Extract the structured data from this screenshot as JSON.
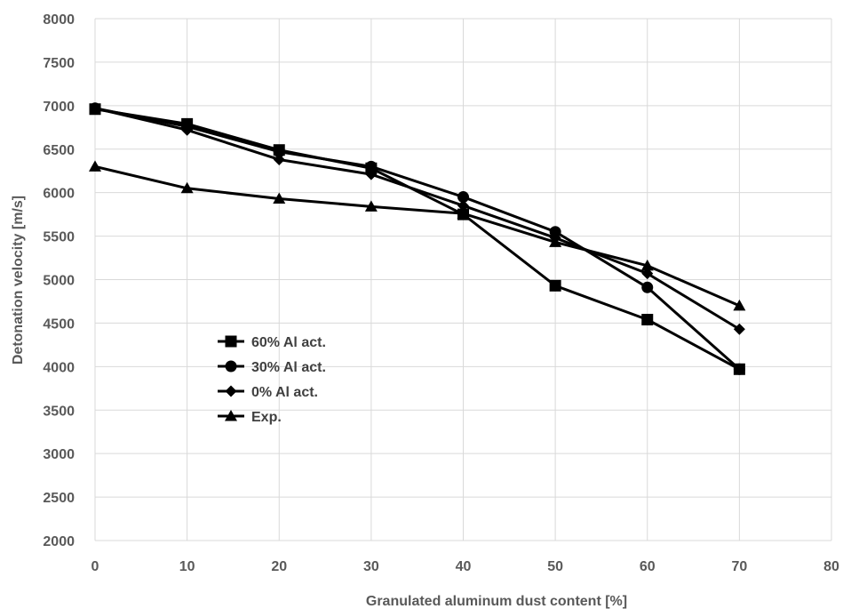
{
  "chart_data": {
    "type": "line",
    "title": "",
    "xlabel": "Granulated aluminum dust content [%]",
    "ylabel": "Detonation velocity [m/s]",
    "xlim": [
      0,
      80
    ],
    "ylim": [
      2000,
      8000
    ],
    "xticks": [
      0,
      10,
      20,
      30,
      40,
      50,
      60,
      70,
      80
    ],
    "yticks": [
      2000,
      2500,
      3000,
      3500,
      4000,
      4500,
      5000,
      5500,
      6000,
      6500,
      7000,
      7500,
      8000
    ],
    "grid": true,
    "legend_position": "left-center-inside",
    "x": [
      0,
      10,
      20,
      30,
      40,
      50,
      60,
      70
    ],
    "series": [
      {
        "name": "60% Al act.",
        "marker": "square",
        "color": "#000000",
        "values": [
          6960,
          6790,
          6490,
          6280,
          5750,
          4930,
          4540,
          3970
        ]
      },
      {
        "name": "30% Al act.",
        "marker": "circle",
        "color": "#000000",
        "values": [
          6970,
          6760,
          6470,
          6300,
          5950,
          5550,
          4910,
          3970
        ]
      },
      {
        "name": "0% Al act.",
        "marker": "diamond",
        "color": "#000000",
        "values": [
          6970,
          6720,
          6380,
          6210,
          5850,
          5480,
          5070,
          4430
        ]
      },
      {
        "name": "Exp.",
        "marker": "triangle",
        "color": "#000000",
        "values": [
          6300,
          6050,
          5930,
          5840,
          5760,
          5430,
          5160,
          4700
        ]
      }
    ]
  }
}
